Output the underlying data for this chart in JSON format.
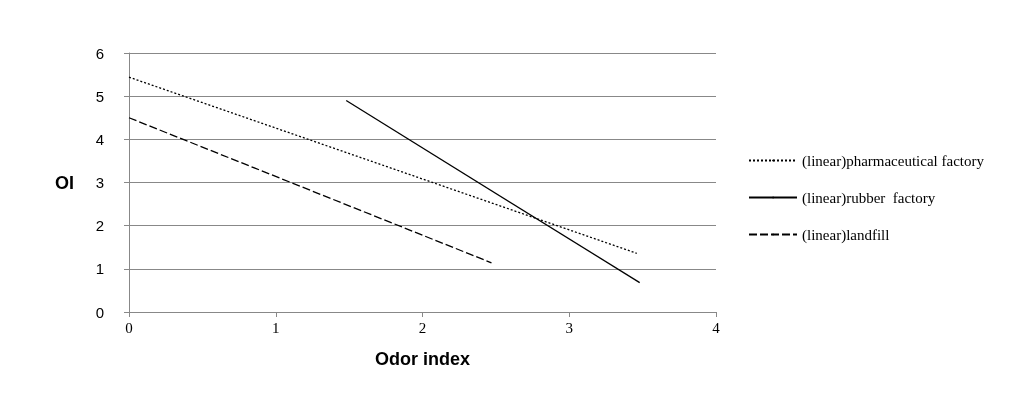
{
  "chart_data": {
    "type": "line",
    "xlabel": "Odor index",
    "ylabel": "OI",
    "xlim": [
      0,
      4
    ],
    "xticks": [
      0,
      1,
      2,
      3,
      4
    ],
    "ylim": [
      0,
      6
    ],
    "yticks": [
      0,
      1,
      2,
      3,
      4,
      5,
      6
    ],
    "grid": "y",
    "legend": "right",
    "marker": "none",
    "series": [
      {
        "name": "(linear)pharmaceutical factory",
        "color": "#000000",
        "line_style": "dotted",
        "x": [
          0,
          3.46
        ],
        "values": [
          5.44,
          1.36
        ]
      },
      {
        "name": "(linear)rubber  factory",
        "color": "#000000",
        "line_style": "solid",
        "x": [
          1.48,
          3.48
        ],
        "values": [
          4.9,
          0.68
        ]
      },
      {
        "name": "(linear)landfill",
        "color": "#000000",
        "line_style": "dashed",
        "x": [
          0,
          2.47
        ],
        "values": [
          4.5,
          1.14
        ]
      }
    ]
  }
}
